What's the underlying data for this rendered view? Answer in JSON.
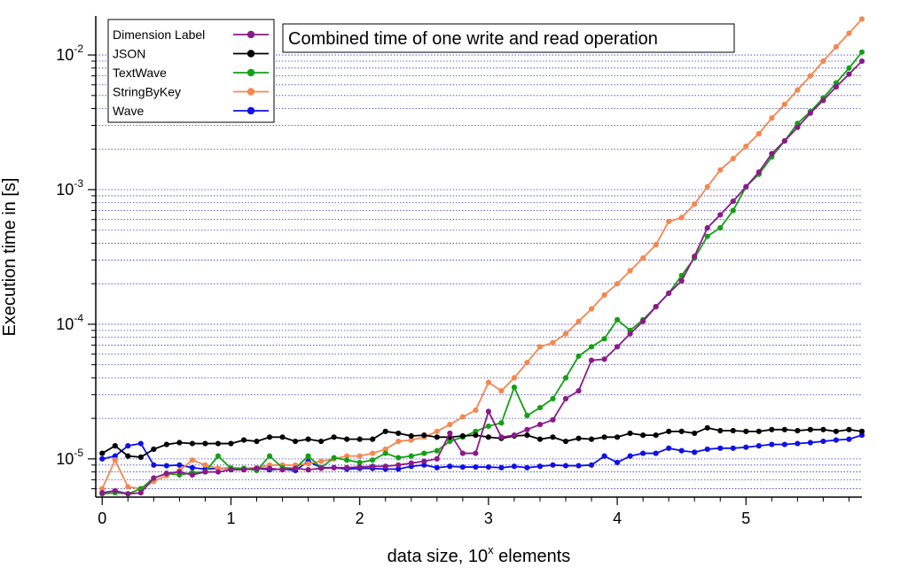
{
  "chart_data": {
    "type": "line",
    "title": "Combined time of one write and read operation",
    "xlabel_main": "data size, 10",
    "xlabel_sup": "x",
    "xlabel_tail": " elements",
    "ylabel": "Execution time in [s]",
    "yscale": "log",
    "xlim": [
      -0.05,
      5.9
    ],
    "ylim": [
      5.2e-06,
      0.0195
    ],
    "x_ticks": [
      0,
      1,
      2,
      3,
      4,
      5
    ],
    "x_tick_labels": [
      "0",
      "1",
      "2",
      "3",
      "4",
      "5"
    ],
    "y_ticks": [
      1e-05,
      0.0001,
      0.001,
      0.01
    ],
    "y_tick_labels": [
      {
        "base": "10",
        "exp": "-5"
      },
      {
        "base": "10",
        "exp": "-4"
      },
      {
        "base": "10",
        "exp": "-3"
      },
      {
        "base": "10",
        "exp": "-2"
      }
    ],
    "grid": "horizontal dotted",
    "legend_position": "top-left",
    "x": [
      0,
      0.1,
      0.2,
      0.3,
      0.4,
      0.5,
      0.6,
      0.7,
      0.8,
      0.9,
      1.0,
      1.1,
      1.2,
      1.3,
      1.4,
      1.5,
      1.6,
      1.7,
      1.8,
      1.9,
      2.0,
      2.1,
      2.2,
      2.3,
      2.4,
      2.5,
      2.6,
      2.7,
      2.8,
      2.9,
      3.0,
      3.1,
      3.2,
      3.3,
      3.4,
      3.5,
      3.6,
      3.7,
      3.8,
      3.9,
      4.0,
      4.1,
      4.2,
      4.3,
      4.4,
      4.5,
      4.6,
      4.7,
      4.8,
      4.9,
      5.0,
      5.1,
      5.2,
      5.3,
      5.4,
      5.5,
      5.6,
      5.7,
      5.8,
      5.9
    ],
    "series": [
      {
        "name": "Dimension Label",
        "color": "#8b1a89",
        "values": [
          5.6e-06,
          5.8e-06,
          5.5e-06,
          5.6e-06,
          7.2e-06,
          7.8e-06,
          8e-06,
          7.6e-06,
          8e-06,
          8e-06,
          8.3e-06,
          8.3e-06,
          8.5e-06,
          8.5e-06,
          8.3e-06,
          8.5e-06,
          8.3e-06,
          8.5e-06,
          8.6e-06,
          8.6e-06,
          8.7e-06,
          8.8e-06,
          8.8e-06,
          9e-06,
          9.3e-06,
          9.6e-06,
          1e-05,
          1.55e-05,
          1.1e-05,
          1.1e-05,
          2.25e-05,
          1.45e-05,
          1.5e-05,
          1.65e-05,
          1.8e-05,
          1.95e-05,
          2.8e-05,
          3.2e-05,
          5.4e-05,
          5.5e-05,
          6.8e-05,
          8.5e-05,
          0.000105,
          0.000135,
          0.00017,
          0.00021,
          0.00032,
          0.00052,
          0.00065,
          0.00082,
          0.00105,
          0.00135,
          0.00185,
          0.0023,
          0.0029,
          0.0037,
          0.0046,
          0.0058,
          0.0072,
          0.009
        ]
      },
      {
        "name": "JSON",
        "color": "#000000",
        "values": [
          1.1e-05,
          1.25e-05,
          1.05e-05,
          1.03e-05,
          1.18e-05,
          1.28e-05,
          1.32e-05,
          1.3e-05,
          1.3e-05,
          1.3e-05,
          1.3e-05,
          1.38e-05,
          1.35e-05,
          1.45e-05,
          1.45e-05,
          1.35e-05,
          1.4e-05,
          1.35e-05,
          1.45e-05,
          1.4e-05,
          1.4e-05,
          1.4e-05,
          1.6e-05,
          1.55e-05,
          1.48e-05,
          1.5e-05,
          1.45e-05,
          1.45e-05,
          1.48e-05,
          1.5e-05,
          1.45e-05,
          1.42e-05,
          1.48e-05,
          1.5e-05,
          1.4e-05,
          1.45e-05,
          1.35e-05,
          1.42e-05,
          1.4e-05,
          1.45e-05,
          1.45e-05,
          1.55e-05,
          1.5e-05,
          1.5e-05,
          1.6e-05,
          1.6e-05,
          1.55e-05,
          1.7e-05,
          1.62e-05,
          1.62e-05,
          1.6e-05,
          1.6e-05,
          1.65e-05,
          1.65e-05,
          1.62e-05,
          1.65e-05,
          1.65e-05,
          1.6e-05,
          1.65e-05,
          1.6e-05
        ]
      },
      {
        "name": "TextWave",
        "color": "#14a014",
        "values": [
          5.5e-06,
          5.6e-06,
          5.5e-06,
          6e-06,
          7.2e-06,
          7.8e-06,
          7.6e-06,
          7.9e-06,
          8e-06,
          1.05e-05,
          8.5e-06,
          8.5e-06,
          8.2e-06,
          1.05e-05,
          8.6e-06,
          8.5e-06,
          1.05e-05,
          8.6e-06,
          1.02e-05,
          9.8e-06,
          9.4e-06,
          9.8e-06,
          1.1e-05,
          1.02e-05,
          1.05e-05,
          1.1e-05,
          1.15e-05,
          1.35e-05,
          1.45e-05,
          1.6e-05,
          1.75e-05,
          1.85e-05,
          3.4e-05,
          2.1e-05,
          2.4e-05,
          2.8e-05,
          4e-05,
          5.8e-05,
          6.8e-05,
          7.8e-05,
          0.000108,
          9e-05,
          0.000108,
          0.000135,
          0.00017,
          0.00023,
          0.00031,
          0.00045,
          0.00052,
          0.0007,
          0.00105,
          0.0013,
          0.00175,
          0.0023,
          0.0031,
          0.0038,
          0.0048,
          0.0062,
          0.008,
          0.0105
        ]
      },
      {
        "name": "StringByKey",
        "color": "#f5874f",
        "values": [
          6e-06,
          9.8e-06,
          6.2e-06,
          6e-06,
          6.8e-06,
          7.5e-06,
          8.2e-06,
          9.8e-06,
          9e-06,
          8.5e-06,
          8.6e-06,
          8.5e-06,
          8.6e-06,
          9e-06,
          9e-06,
          9e-06,
          9.2e-06,
          9.6e-06,
          1e-05,
          1.05e-05,
          1.05e-05,
          1.1e-05,
          1.18e-05,
          1.35e-05,
          1.38e-05,
          1.45e-05,
          1.6e-05,
          1.8e-05,
          2.05e-05,
          2.3e-05,
          3.7e-05,
          3.2e-05,
          4e-05,
          5.2e-05,
          6.8e-05,
          7.3e-05,
          8.5e-05,
          0.000105,
          0.00013,
          0.000165,
          0.0002,
          0.00025,
          0.00031,
          0.00039,
          0.00058,
          0.00062,
          0.00078,
          0.00105,
          0.0014,
          0.0017,
          0.0021,
          0.0026,
          0.0034,
          0.0043,
          0.0055,
          0.007,
          0.009,
          0.0115,
          0.0145,
          0.0185
        ]
      },
      {
        "name": "Wave",
        "color": "#1010e8",
        "values": [
          1e-05,
          1.05e-05,
          1.25e-05,
          1.3e-05,
          9e-06,
          8.9e-06,
          9e-06,
          8.6e-06,
          8.4e-06,
          8.5e-06,
          8.5e-06,
          8.4e-06,
          8.5e-06,
          8.3e-06,
          8.4e-06,
          8.2e-06,
          9.6e-06,
          8.6e-06,
          8.6e-06,
          8.4e-06,
          8.5e-06,
          8.5e-06,
          8.4e-06,
          8.4e-06,
          8.8e-06,
          9e-06,
          8.6e-06,
          8.8e-06,
          8.7e-06,
          8.7e-06,
          8.7e-06,
          8.6e-06,
          8.8e-06,
          8.6e-06,
          8.8e-06,
          9e-06,
          8.9e-06,
          8.9e-06,
          9e-06,
          1.05e-05,
          9.4e-06,
          1.05e-05,
          1.1e-05,
          1.1e-05,
          1.2e-05,
          1.15e-05,
          1.12e-05,
          1.18e-05,
          1.2e-05,
          1.2e-05,
          1.22e-05,
          1.25e-05,
          1.28e-05,
          1.28e-05,
          1.3e-05,
          1.32e-05,
          1.35e-05,
          1.38e-05,
          1.4e-05,
          1.5e-05
        ]
      }
    ]
  },
  "legend": {
    "entries": [
      "Dimension Label",
      "JSON",
      "TextWave",
      "StringByKey",
      "Wave"
    ]
  }
}
